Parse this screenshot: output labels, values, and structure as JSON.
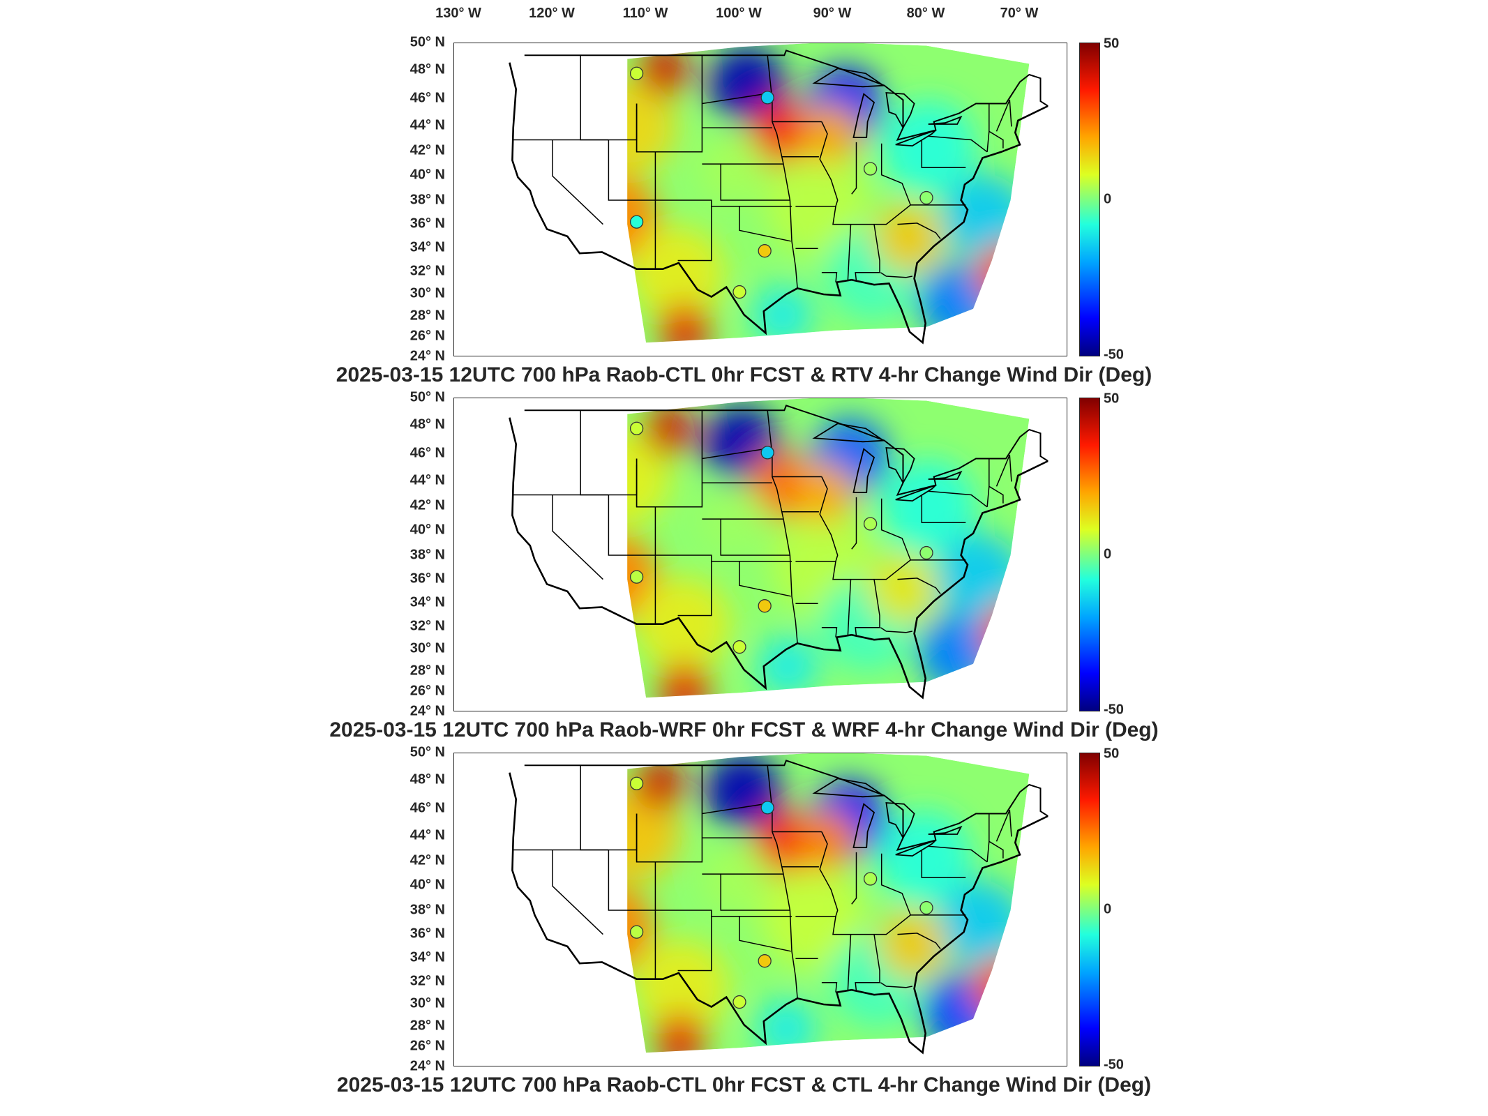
{
  "longitude_labels": [
    "130° W",
    "120° W",
    "110° W",
    "100° W",
    "90° W",
    "80° W",
    "70° W"
  ],
  "latitude_labels": [
    "50° N",
    "48° N",
    "46° N",
    "44° N",
    "42° N",
    "40° N",
    "38° N",
    "36° N",
    "34° N",
    "32° N",
    "30° N",
    "28° N",
    "26° N",
    "24° N"
  ],
  "colorbar": {
    "max_label": "50",
    "mid_label": "0",
    "min_label": "-50"
  },
  "panels": [
    {
      "title": "2025-03-15 12UTC 700 hPa Raob-CTL 0hr FCST & RTV 4-hr Change Wind Dir (Deg)"
    },
    {
      "title": "2025-03-15 12UTC 700 hPa Raob-WRF 0hr FCST & WRF 4-hr Change Wind Dir (Deg)"
    },
    {
      "title": "2025-03-15 12UTC 700 hPa Raob-CTL 0hr FCST & CTL 4-hr Change Wind Dir (Deg)"
    }
  ],
  "colors": {
    "colormap": [
      "#00007f",
      "#0000ff",
      "#00a5ff",
      "#22ffdd",
      "#7fff7f",
      "#ddff22",
      "#ffa500",
      "#ff1a00",
      "#800000"
    ],
    "outline": "#000000"
  },
  "station_markers": {
    "icon": "circle-marker-icon",
    "panels": [
      [
        {
          "lon": -111.0,
          "lat": 47.5,
          "value": 10
        },
        {
          "lon": -97.0,
          "lat": 45.5,
          "value": -20
        },
        {
          "lon": -111.0,
          "lat": 35.2,
          "value": -12
        },
        {
          "lon": -97.3,
          "lat": 32.8,
          "value": 20
        },
        {
          "lon": -100.0,
          "lat": 29.4,
          "value": 10
        },
        {
          "lon": -86.0,
          "lat": 39.6,
          "value": 4
        },
        {
          "lon": -80.0,
          "lat": 37.2,
          "value": 2
        }
      ],
      [
        {
          "lon": -111.0,
          "lat": 47.5,
          "value": 10
        },
        {
          "lon": -97.0,
          "lat": 45.5,
          "value": -20
        },
        {
          "lon": -111.0,
          "lat": 35.2,
          "value": 8
        },
        {
          "lon": -97.3,
          "lat": 32.8,
          "value": 20
        },
        {
          "lon": -100.0,
          "lat": 29.4,
          "value": 10
        },
        {
          "lon": -86.0,
          "lat": 39.6,
          "value": 6
        },
        {
          "lon": -80.0,
          "lat": 37.2,
          "value": 2
        }
      ],
      [
        {
          "lon": -111.0,
          "lat": 47.5,
          "value": 10
        },
        {
          "lon": -97.0,
          "lat": 45.5,
          "value": -20
        },
        {
          "lon": -111.0,
          "lat": 35.2,
          "value": 8
        },
        {
          "lon": -97.3,
          "lat": 32.8,
          "value": 20
        },
        {
          "lon": -100.0,
          "lat": 29.4,
          "value": 10
        },
        {
          "lon": -86.0,
          "lat": 39.6,
          "value": 6
        },
        {
          "lon": -80.0,
          "lat": 37.2,
          "value": 2
        }
      ]
    ]
  }
}
